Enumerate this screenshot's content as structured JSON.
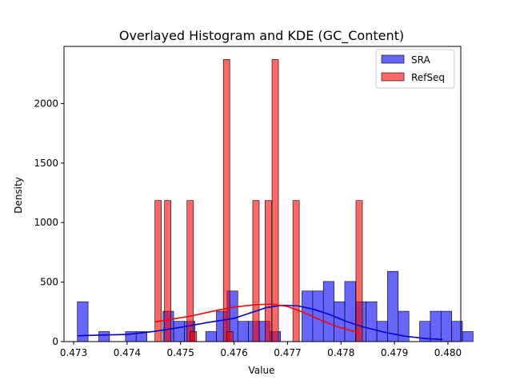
{
  "chart_data": {
    "type": "histogram",
    "title": "Overlayed Histogram and KDE (GC_Content)",
    "xlabel": "Value",
    "ylabel": "Density",
    "xlim": [
      0.47282,
      0.48024
    ],
    "ylim": [
      0,
      2480
    ],
    "x_ticks": [
      0.473,
      0.474,
      0.475,
      0.476,
      0.477,
      0.478,
      0.479,
      0.48
    ],
    "x_tick_labels": [
      "0.473",
      "0.474",
      "0.475",
      "0.476",
      "0.477",
      "0.478",
      "0.479",
      "0.480"
    ],
    "y_ticks": [
      0,
      500,
      1000,
      1500,
      2000
    ],
    "y_tick_labels": [
      "0",
      "500",
      "1000",
      "1500",
      "2000"
    ],
    "legend": {
      "placement": "top-right",
      "entries": [
        "SRA",
        "RefSeq"
      ]
    },
    "grid": false,
    "series": [
      {
        "name": "SRA",
        "kind": "histogram",
        "color": "#0000ff",
        "fill_alpha": 0.6,
        "bars": [
          {
            "x0": 0.47307,
            "x1": 0.47327,
            "density": 335
          },
          {
            "x0": 0.47347,
            "x1": 0.47367,
            "density": 84
          },
          {
            "x0": 0.47397,
            "x1": 0.47417,
            "density": 84
          },
          {
            "x0": 0.47417,
            "x1": 0.47437,
            "density": 84
          },
          {
            "x0": 0.47467,
            "x1": 0.47487,
            "density": 255
          },
          {
            "x0": 0.47487,
            "x1": 0.47507,
            "density": 170
          },
          {
            "x0": 0.47507,
            "x1": 0.47527,
            "density": 170
          },
          {
            "x0": 0.47527,
            "x1": 0.47547,
            "density": 0
          },
          {
            "x0": 0.47547,
            "x1": 0.47567,
            "density": 84
          },
          {
            "x0": 0.47567,
            "x1": 0.47587,
            "density": 255
          },
          {
            "x0": 0.47587,
            "x1": 0.47607,
            "density": 425
          },
          {
            "x0": 0.47607,
            "x1": 0.47627,
            "density": 170
          },
          {
            "x0": 0.47627,
            "x1": 0.47647,
            "density": 170
          },
          {
            "x0": 0.47647,
            "x1": 0.47667,
            "density": 170
          },
          {
            "x0": 0.47667,
            "x1": 0.47687,
            "density": 84
          },
          {
            "x0": 0.47687,
            "x1": 0.47707,
            "density": 0
          },
          {
            "x0": 0.47727,
            "x1": 0.47747,
            "density": 425
          },
          {
            "x0": 0.47747,
            "x1": 0.47767,
            "density": 425
          },
          {
            "x0": 0.47767,
            "x1": 0.47787,
            "density": 505
          },
          {
            "x0": 0.47787,
            "x1": 0.47807,
            "density": 335
          },
          {
            "x0": 0.47807,
            "x1": 0.47827,
            "density": 505
          },
          {
            "x0": 0.47827,
            "x1": 0.47847,
            "density": 335
          },
          {
            "x0": 0.47847,
            "x1": 0.47867,
            "density": 335
          },
          {
            "x0": 0.47867,
            "x1": 0.47887,
            "density": 170
          },
          {
            "x0": 0.47887,
            "x1": 0.47907,
            "density": 590
          },
          {
            "x0": 0.47907,
            "x1": 0.47927,
            "density": 255
          },
          {
            "x0": 0.47947,
            "x1": 0.47967,
            "density": 170
          },
          {
            "x0": 0.47967,
            "x1": 0.47987,
            "density": 255
          },
          {
            "x0": 0.47987,
            "x1": 0.48007,
            "density": 255
          },
          {
            "x0": 0.48007,
            "x1": 0.48027,
            "density": 170
          },
          {
            "x0": 0.48027,
            "x1": 0.48047,
            "density": 84
          }
        ]
      },
      {
        "name": "RefSeq",
        "kind": "histogram",
        "color": "#ff0000",
        "fill_alpha": 0.6,
        "bars": [
          {
            "x0": 0.47452,
            "x1": 0.47464,
            "density": 1185
          },
          {
            "x0": 0.4747,
            "x1": 0.47482,
            "density": 1185
          },
          {
            "x0": 0.47512,
            "x1": 0.47524,
            "density": 1185
          },
          {
            "x0": 0.47518,
            "x1": 0.4753,
            "density": 84
          },
          {
            "x0": 0.4758,
            "x1": 0.47592,
            "density": 2370
          },
          {
            "x0": 0.47586,
            "x1": 0.47598,
            "density": 84
          },
          {
            "x0": 0.47635,
            "x1": 0.47647,
            "density": 1185
          },
          {
            "x0": 0.47658,
            "x1": 0.4767,
            "density": 1185
          },
          {
            "x0": 0.47671,
            "x1": 0.47683,
            "density": 2370
          },
          {
            "x0": 0.4771,
            "x1": 0.47722,
            "density": 1185
          },
          {
            "x0": 0.47828,
            "x1": 0.4784,
            "density": 1185
          }
        ]
      }
    ],
    "kde": [
      {
        "name": "SRA",
        "color": "#0000cc",
        "points": [
          [
            0.47307,
            48
          ],
          [
            0.4735,
            55
          ],
          [
            0.474,
            60
          ],
          [
            0.4745,
            85
          ],
          [
            0.475,
            120
          ],
          [
            0.4755,
            160
          ],
          [
            0.476,
            195
          ],
          [
            0.4763,
            240
          ],
          [
            0.4766,
            285
          ],
          [
            0.4769,
            305
          ],
          [
            0.4772,
            300
          ],
          [
            0.4775,
            270
          ],
          [
            0.4778,
            225
          ],
          [
            0.4781,
            170
          ],
          [
            0.4784,
            125
          ],
          [
            0.4788,
            80
          ],
          [
            0.4792,
            45
          ],
          [
            0.4796,
            25
          ],
          [
            0.4799,
            18
          ]
        ]
      },
      {
        "name": "RefSeq",
        "color": "#ff0000",
        "points": [
          [
            0.47452,
            165
          ],
          [
            0.4748,
            185
          ],
          [
            0.4752,
            215
          ],
          [
            0.4756,
            255
          ],
          [
            0.476,
            290
          ],
          [
            0.4764,
            310
          ],
          [
            0.4767,
            315
          ],
          [
            0.477,
            295
          ],
          [
            0.4773,
            245
          ],
          [
            0.4776,
            185
          ],
          [
            0.4779,
            130
          ],
          [
            0.4782,
            90
          ],
          [
            0.47834,
            80
          ]
        ]
      }
    ]
  }
}
